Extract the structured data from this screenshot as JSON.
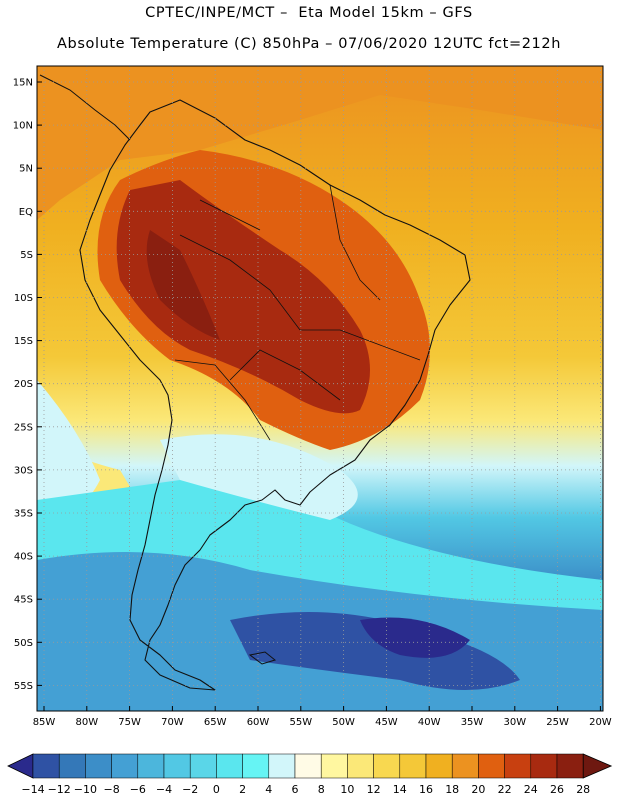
{
  "header": {
    "line1": "CPTEC/INPE/MCT –  Eta Model 15km – GFS",
    "line2": "Absolute Temperature (C) 850hPa – 07/06/2020 12UTC fct=212h"
  },
  "map": {
    "lat_labels": [
      "15N",
      "10N",
      "5N",
      "EQ",
      "5S",
      "10S",
      "15S",
      "20S",
      "25S",
      "30S",
      "35S",
      "40S",
      "45S",
      "50S",
      "55S"
    ],
    "lon_labels": [
      "85W",
      "80W",
      "75W",
      "70W",
      "65W",
      "60W",
      "55W",
      "50W",
      "45W",
      "40W",
      "35W",
      "30W",
      "25W",
      "20W"
    ],
    "colors": {
      "land_outline": "#111111",
      "grid": "#9a9a9a"
    }
  },
  "colorbar": {
    "labels": [
      "-14",
      "-12",
      "-10",
      "-8",
      "-6",
      "-4",
      "-2",
      "0",
      "2",
      "4",
      "6",
      "8",
      "10",
      "12",
      "14",
      "16",
      "18",
      "20",
      "22",
      "24",
      "26",
      "28"
    ],
    "colors": [
      "#2a2a8c",
      "#2f52a4",
      "#3478b8",
      "#3c8ec8",
      "#44a0d4",
      "#4cb6dc",
      "#52c8e4",
      "#5ad6e8",
      "#5ae6ee",
      "#66f4f4",
      "#d2f6fa",
      "#fffbe6",
      "#fff7a0",
      "#fbe878",
      "#f8d850",
      "#f4c838",
      "#f0b020",
      "#ec9220",
      "#e06010",
      "#c84010",
      "#a82a10",
      "#8a1f10",
      "#6e1810"
    ]
  }
}
